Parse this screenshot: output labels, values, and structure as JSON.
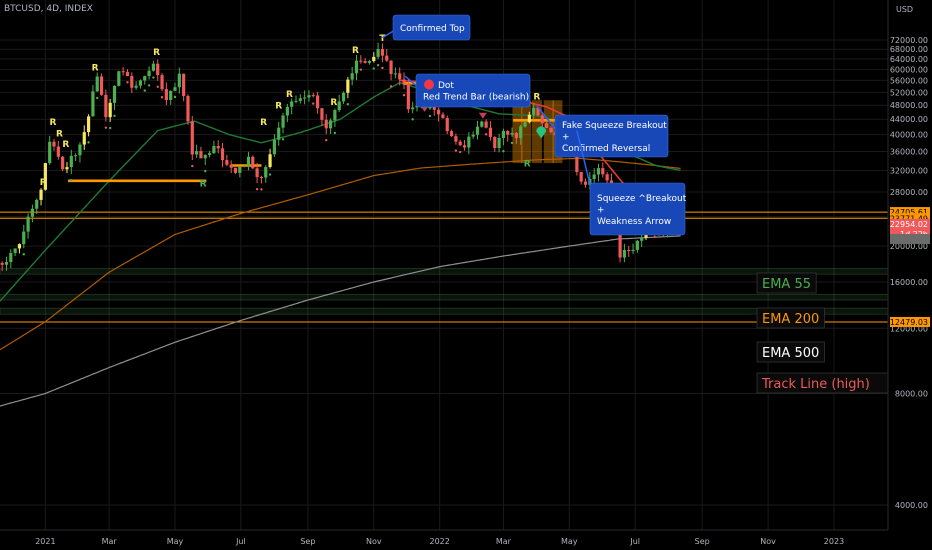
{
  "symbol_title": "BTCUSD, 4D, INDEX",
  "currency": "USD",
  "colors": {
    "bg": "#000000",
    "bull": "#4caf50",
    "bear": "#f0595a",
    "yellow": "#f5e663",
    "orange": "#ff9800",
    "ema55": "#1f7a34",
    "ema200": "#b35c00",
    "ema500": "#8f8f8f",
    "track": "#e53935",
    "callout": "#1848b8",
    "grid": "#1a1a1a"
  },
  "chart_data": {
    "type": "candlestick",
    "y_scale": "log",
    "ylim": [
      3200,
      90000
    ],
    "xlim": [
      "2020-11-20",
      "2023-02-20"
    ],
    "y_ticks": [
      {
        "v": 72000,
        "label": "72000.00"
      },
      {
        "v": 68000,
        "label": "68000.00"
      },
      {
        "v": 64000,
        "label": "64000.00"
      },
      {
        "v": 60000,
        "label": "60000.00"
      },
      {
        "v": 56000,
        "label": "56000.00"
      },
      {
        "v": 52000,
        "label": "52000.00"
      },
      {
        "v": 48000,
        "label": "48000.00"
      },
      {
        "v": 44000,
        "label": "44000.00"
      },
      {
        "v": 40000,
        "label": "40000.00"
      },
      {
        "v": 36000,
        "label": "36000.00"
      },
      {
        "v": 32000,
        "label": "32000.00"
      },
      {
        "v": 28000,
        "label": "28000.00"
      },
      {
        "v": 24000,
        "label": "24000.00"
      },
      {
        "v": 20000,
        "label": "20000.00"
      },
      {
        "v": 16000,
        "label": "16000.00"
      },
      {
        "v": 12000,
        "label": "12000.00"
      },
      {
        "v": 8000,
        "label": "8000.00"
      },
      {
        "v": 4000,
        "label": "4000.00"
      }
    ],
    "x_ticks": [
      {
        "d": "2021-01-01",
        "label": "2021"
      },
      {
        "d": "2021-03-01",
        "label": "Mar"
      },
      {
        "d": "2021-05-01",
        "label": "May"
      },
      {
        "d": "2021-07-01",
        "label": "Jul"
      },
      {
        "d": "2021-09-01",
        "label": "Sep"
      },
      {
        "d": "2021-11-01",
        "label": "Nov"
      },
      {
        "d": "2022-01-01",
        "label": "2022"
      },
      {
        "d": "2022-03-01",
        "label": "Mar"
      },
      {
        "d": "2022-05-01",
        "label": "May"
      },
      {
        "d": "2022-07-01",
        "label": "Jul"
      },
      {
        "d": "2022-09-01",
        "label": "Sep"
      },
      {
        "d": "2022-11-01",
        "label": "Nov"
      },
      {
        "d": "2023-01-01",
        "label": "2023"
      }
    ],
    "price_anchors": [
      [
        "2020-11-20",
        18000
      ],
      [
        "2020-12-05",
        19000
      ],
      [
        "2020-12-18",
        23500
      ],
      [
        "2020-12-30",
        29000
      ],
      [
        "2021-01-08",
        40500
      ],
      [
        "2021-01-20",
        31500
      ],
      [
        "2021-02-05",
        38000
      ],
      [
        "2021-02-20",
        57000
      ],
      [
        "2021-02-28",
        45000
      ],
      [
        "2021-03-13",
        61000
      ],
      [
        "2021-03-25",
        53000
      ],
      [
        "2021-04-14",
        63500
      ],
      [
        "2021-04-25",
        49000
      ],
      [
        "2021-05-08",
        58000
      ],
      [
        "2021-05-19",
        36000
      ],
      [
        "2021-05-28",
        35000
      ],
      [
        "2021-06-10",
        37500
      ],
      [
        "2021-06-22",
        31500
      ],
      [
        "2021-07-10",
        34000
      ],
      [
        "2021-07-20",
        29800
      ],
      [
        "2021-08-13",
        46000
      ],
      [
        "2021-08-23",
        49500
      ],
      [
        "2021-09-06",
        52000
      ],
      [
        "2021-09-21",
        41000
      ],
      [
        "2021-10-01",
        48000
      ],
      [
        "2021-10-20",
        64500
      ],
      [
        "2021-10-28",
        61000
      ],
      [
        "2021-11-09",
        68500
      ],
      [
        "2021-11-20",
        58000
      ],
      [
        "2021-11-30",
        57000
      ],
      [
        "2021-12-04",
        48000
      ],
      [
        "2021-12-15",
        47500
      ],
      [
        "2021-12-28",
        48000
      ],
      [
        "2022-01-10",
        41500
      ],
      [
        "2022-01-24",
        36000
      ],
      [
        "2022-02-10",
        44500
      ],
      [
        "2022-02-24",
        37000
      ],
      [
        "2022-03-05",
        41000
      ],
      [
        "2022-03-15",
        39000
      ],
      [
        "2022-03-29",
        47500
      ],
      [
        "2022-04-10",
        42000
      ],
      [
        "2022-04-25",
        39500
      ],
      [
        "2022-05-04",
        39000
      ],
      [
        "2022-05-12",
        29000
      ],
      [
        "2022-05-30",
        31700
      ],
      [
        "2022-06-10",
        29000
      ],
      [
        "2022-06-18",
        19000
      ],
      [
        "2022-07-01",
        19500
      ],
      [
        "2022-07-20",
        23500
      ],
      [
        "2022-07-26",
        21500
      ],
      [
        "2022-08-05",
        23200
      ],
      [
        "2022-08-10",
        23000
      ]
    ],
    "ema55": [
      [
        "2020-11-20",
        14200
      ],
      [
        "2021-01-01",
        19500
      ],
      [
        "2021-03-01",
        30000
      ],
      [
        "2021-04-15",
        41000
      ],
      [
        "2021-05-19",
        43500
      ],
      [
        "2021-06-20",
        40000
      ],
      [
        "2021-07-20",
        38000
      ],
      [
        "2021-08-25",
        40500
      ],
      [
        "2021-10-01",
        44000
      ],
      [
        "2021-11-01",
        50500
      ],
      [
        "2021-11-25",
        55200
      ],
      [
        "2021-12-25",
        52000
      ],
      [
        "2022-01-25",
        48000
      ],
      [
        "2022-02-25",
        45500
      ],
      [
        "2022-03-30",
        45000
      ],
      [
        "2022-04-25",
        43500
      ],
      [
        "2022-05-20",
        40000
      ],
      [
        "2022-06-20",
        36000
      ],
      [
        "2022-07-20",
        33000
      ],
      [
        "2022-08-12",
        32000
      ]
    ],
    "ema200": [
      [
        "2020-11-20",
        10500
      ],
      [
        "2021-01-01",
        12500
      ],
      [
        "2021-03-01",
        17000
      ],
      [
        "2021-05-01",
        21500
      ],
      [
        "2021-07-01",
        24500
      ],
      [
        "2021-09-01",
        27500
      ],
      [
        "2021-11-01",
        31000
      ],
      [
        "2021-12-15",
        32500
      ],
      [
        "2022-02-01",
        33300
      ],
      [
        "2022-04-01",
        34200
      ],
      [
        "2022-05-10",
        34500
      ],
      [
        "2022-06-15",
        33800
      ],
      [
        "2022-07-20",
        33000
      ],
      [
        "2022-08-12",
        32400
      ]
    ],
    "ema500": [
      [
        "2020-11-20",
        7400
      ],
      [
        "2021-01-01",
        8000
      ],
      [
        "2021-03-01",
        9400
      ],
      [
        "2021-05-01",
        11000
      ],
      [
        "2021-07-01",
        12600
      ],
      [
        "2021-09-01",
        14300
      ],
      [
        "2021-11-01",
        16000
      ],
      [
        "2022-01-01",
        17600
      ],
      [
        "2022-03-01",
        18800
      ],
      [
        "2022-05-01",
        20000
      ],
      [
        "2022-06-15",
        20900
      ],
      [
        "2022-08-12",
        21300
      ]
    ],
    "track_line": [
      [
        "2021-11-25",
        56000
      ],
      [
        "2021-12-15",
        55500
      ],
      [
        "2022-01-10",
        54500
      ],
      [
        "2022-02-10",
        52500
      ],
      [
        "2022-03-10",
        50000
      ],
      [
        "2022-04-10",
        47500
      ],
      [
        "2022-05-01",
        44500
      ],
      [
        "2022-05-20",
        38000
      ],
      [
        "2022-06-20",
        29500
      ],
      [
        "2022-07-15",
        24600
      ],
      [
        "2022-07-25",
        24700
      ]
    ],
    "orange_steps": [
      {
        "from": "2021-01-22",
        "to": "2021-05-30",
        "v": 30000
      },
      {
        "from": "2021-06-22",
        "to": "2021-07-20",
        "v": 33000
      },
      {
        "from": "2021-11-28",
        "to": "2021-12-14",
        "v": 55000
      },
      {
        "from": "2022-03-10",
        "to": "2022-05-03",
        "v": 43700
      }
    ],
    "squeeze_bars": [
      "2022-03-14",
      "2022-03-22",
      "2022-04-01",
      "2022-04-12",
      "2022-04-20"
    ],
    "squeeze_low": 33500,
    "squeeze_high": 49500,
    "support_bands": [
      {
        "lo": 16800,
        "hi": 17400
      },
      {
        "lo": 14300,
        "hi": 14800
      },
      {
        "lo": 13100,
        "hi": 13600
      }
    ],
    "h_lines": [
      {
        "v": 24705.61,
        "color": "#ff9800"
      },
      {
        "v": 23771.49,
        "color": "#ff9800"
      },
      {
        "v": 12479.03,
        "color": "#ff9800"
      }
    ],
    "price_labels": [
      {
        "v": 24705.61,
        "label": "24705.61",
        "bg": "#ff9800",
        "fg": "#000000"
      },
      {
        "v": 23771.49,
        "label": "23771.49",
        "bg": "#ff9800",
        "fg": "#000000"
      },
      {
        "v": 22954.02,
        "label": "22954.02",
        "sub": "1d 22h",
        "bg": "#f0595a",
        "fg": "#ffffff"
      },
      {
        "v": 20900,
        "label": "",
        "bg": "#6b6b6b",
        "fg": "#ffffff"
      },
      {
        "v": 12479.03,
        "label": "12479.03",
        "bg": "#ff9800",
        "fg": "#000000"
      }
    ],
    "r_markers": [
      {
        "d": "2020-12-30",
        "v": 29200,
        "label": "R",
        "color": "#f5e663"
      },
      {
        "d": "2021-01-08",
        "v": 42500,
        "label": "R",
        "color": "#f5e663"
      },
      {
        "d": "2021-01-14",
        "v": 39500,
        "label": "R",
        "color": "#f5e663"
      },
      {
        "d": "2021-01-20",
        "v": 37000,
        "label": "R",
        "color": "#f5e663"
      },
      {
        "d": "2021-02-16",
        "v": 59500,
        "label": "R",
        "color": "#f5e663"
      },
      {
        "d": "2021-04-14",
        "v": 65500,
        "label": "R",
        "color": "#f5e663"
      },
      {
        "d": "2021-05-27",
        "v": 29000,
        "label": "R",
        "color": "#4caf50"
      },
      {
        "d": "2021-07-22",
        "v": 42500,
        "label": "R",
        "color": "#f5e663"
      },
      {
        "d": "2021-08-05",
        "v": 47000,
        "label": "R",
        "color": "#f5e663"
      },
      {
        "d": "2021-08-15",
        "v": 50500,
        "label": "R",
        "color": "#f5e663"
      },
      {
        "d": "2021-09-25",
        "v": 48000,
        "label": "R",
        "color": "#f5e663"
      },
      {
        "d": "2021-10-15",
        "v": 66500,
        "label": "R",
        "color": "#f5e663"
      },
      {
        "d": "2021-11-09",
        "v": 71500,
        "label": "T",
        "color": "#f5e663"
      },
      {
        "d": "2022-03-23",
        "v": 32800,
        "label": "R",
        "color": "#4caf50"
      },
      {
        "d": "2022-04-01",
        "v": 49800,
        "label": "R",
        "color": "#f5e663"
      }
    ],
    "signal_dots": [
      {
        "d": "2022-05-08",
        "v": 43000,
        "color": "#f0595a"
      },
      {
        "d": "2022-04-05",
        "v": 40800,
        "color": "#26c281"
      }
    ],
    "callouts": [
      {
        "id": "top",
        "lines": [
          "Confirmed Top"
        ],
        "dx": [
          393,
          470
        ],
        "dy": [
          15,
          40
        ],
        "tip": [
          "2021-11-09",
          73000
        ]
      },
      {
        "id": "dot",
        "lines": [
          "Dot",
          "Red Trend Bar (bearish)"
        ],
        "dot": true,
        "dx": [
          416,
          530
        ],
        "dy": [
          74,
          107
        ],
        "tip": [
          "2021-11-30",
          57500
        ]
      },
      {
        "id": "fake",
        "lines": [
          "Fake Squeeze Breakout",
          "+",
          "Confirmed Reversal"
        ],
        "dx": [
          555,
          668
        ],
        "dy": [
          115,
          157
        ],
        "tip": [
          "2022-04-01",
          47800
        ]
      },
      {
        "id": "squeeze",
        "lines": [
          "Squeeze ^Breakout",
          "+",
          "Weakness Arrow"
        ],
        "dx": [
          590,
          685
        ],
        "dy": [
          183,
          235
        ],
        "tip": [
          "2022-05-08",
          41000
        ]
      }
    ],
    "legend": [
      {
        "label": "EMA 55",
        "color": "#4caf50",
        "top": 273
      },
      {
        "label": "EMA 200",
        "color": "#ff9800",
        "top": 308
      },
      {
        "label": "EMA 500",
        "color": "#ffffff",
        "top": 342
      },
      {
        "label": "Track Line (high)",
        "color": "#f0595a",
        "top": 373
      }
    ]
  }
}
